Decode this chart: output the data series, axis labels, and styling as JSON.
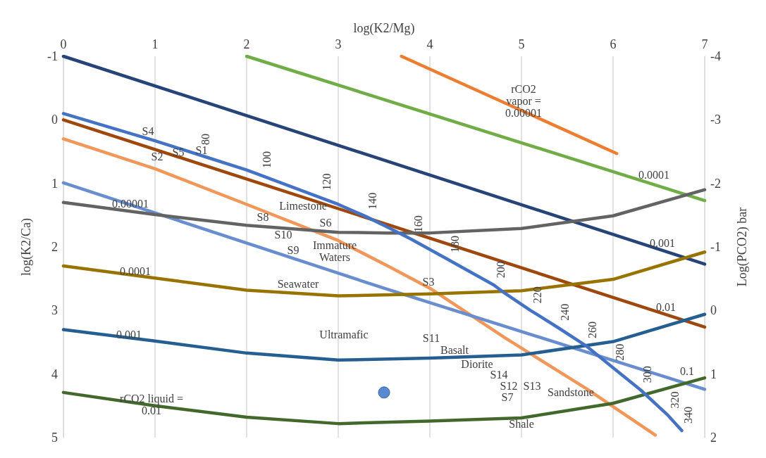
{
  "chart_data": {
    "type": "line",
    "xlabel": "log(K2/Mg)",
    "ylabel": "log(K2/Ca)",
    "y2label": "Log(PCO2) bar",
    "xlim": [
      0,
      7
    ],
    "xticks": [
      0,
      1,
      2,
      3,
      4,
      5,
      6,
      7
    ],
    "ylim": [
      5,
      -1
    ],
    "yticks": [
      -1,
      0,
      1,
      2,
      3,
      4,
      5
    ],
    "y2lim": [
      2,
      -4
    ],
    "y2ticks": [
      -4,
      -3,
      -2,
      -1,
      0,
      1,
      2
    ],
    "grid": "x",
    "marker": "none",
    "line_style": "solid",
    "series": [
      {
        "color": "#264478",
        "x": [
          0,
          7
        ],
        "values": [
          -1,
          2.27
        ]
      },
      {
        "color": "#70ad47",
        "x": [
          2,
          7
        ],
        "values": [
          -1,
          1.27
        ]
      },
      {
        "color": "#ed7d31",
        "x": [
          3.69,
          6.04
        ],
        "values": [
          -1,
          0.53
        ]
      },
      {
        "color": "#9e480e",
        "x": [
          0,
          7
        ],
        "values": [
          0,
          3.26
        ]
      },
      {
        "color": "#f1975a",
        "x": [
          0,
          1,
          2,
          3,
          3.54,
          4,
          4.82,
          5.72,
          6.46
        ],
        "values": [
          0.3,
          0.77,
          1.33,
          1.9,
          2.3,
          2.65,
          3.43,
          4.24,
          4.96
        ]
      },
      {
        "color": "#698ed0",
        "x": [
          0,
          3.5,
          7
        ],
        "values": [
          0.99,
          2.65,
          4.24
        ]
      },
      {
        "color": "#636363",
        "x": [
          0,
          1,
          2,
          3,
          3.54,
          4,
          5,
          6,
          7
        ],
        "values": [
          1.3,
          1.49,
          1.66,
          1.77,
          1.78,
          1.78,
          1.71,
          1.51,
          1.1
        ]
      },
      {
        "color": "#997300",
        "x": [
          0,
          1,
          2,
          3,
          4,
          5,
          6,
          7
        ],
        "values": [
          2.3,
          2.49,
          2.68,
          2.77,
          2.74,
          2.69,
          2.51,
          2.08
        ]
      },
      {
        "color": "#255e91",
        "x": [
          0,
          1,
          2,
          3,
          4,
          5,
          6,
          7
        ],
        "values": [
          3.3,
          3.48,
          3.67,
          3.78,
          3.75,
          3.7,
          3.49,
          3.06
        ]
      },
      {
        "color": "#43682b",
        "x": [
          0,
          1,
          2,
          3,
          4,
          5,
          6,
          7
        ],
        "values": [
          4.29,
          4.5,
          4.68,
          4.78,
          4.74,
          4.69,
          4.46,
          4.06
        ]
      },
      {
        "color": "#4472c4",
        "x": [
          0,
          1,
          1.48,
          2,
          2.15,
          2.8,
          3,
          3.3,
          3.54,
          3.8,
          4.2,
          4.7,
          4.82,
          5.1,
          5.4,
          5.7,
          6,
          6.3,
          6.6,
          6.75
        ],
        "values": [
          -0.1,
          0.33,
          0.55,
          0.79,
          0.87,
          1.22,
          1.33,
          1.52,
          1.69,
          1.88,
          2.2,
          2.6,
          2.73,
          3,
          3.27,
          3.55,
          3.9,
          4.25,
          4.65,
          4.89
        ]
      },
      {
        "type": "scatter",
        "marker": "circle",
        "color": "#2e6bc6",
        "x": [
          3.5
        ],
        "values": [
          4.29
        ]
      }
    ],
    "annotations": [
      "S4",
      "S2",
      "S5",
      "S1",
      "Limestone",
      "S8",
      "S10",
      "S6",
      "S9",
      "Immature\nWaters",
      "Seawater",
      "0.00001",
      "0.0001",
      "0.001",
      "rCO2 liquid =\n0.01",
      "Ultramafic",
      "S3",
      "S11",
      "Basalt",
      "Diorite",
      "S14",
      "S12",
      "S13",
      "S7",
      "Sandstone",
      "Shale",
      "0.001",
      "0.01",
      "0.1",
      "rCO2\nvapor =\n0.00001",
      "0.0001",
      {
        "text": "80",
        "x": 1.48,
        "y": 0.55
      },
      {
        "text": "100",
        "x": 2.15,
        "y": 0.87
      },
      {
        "text": "120",
        "x": 2.8,
        "y": 1.22
      },
      {
        "text": "140",
        "x": 3.3,
        "y": 1.52
      },
      {
        "text": "160",
        "x": 3.8,
        "y": 1.88
      },
      {
        "text": "180",
        "x": 4.2,
        "y": 2.2
      },
      {
        "text": "200",
        "x": 4.7,
        "y": 2.6
      },
      {
        "text": "220",
        "x": 5.1,
        "y": 3
      },
      {
        "text": "240",
        "x": 5.4,
        "y": 3.27
      },
      {
        "text": "260",
        "x": 5.7,
        "y": 3.55
      },
      {
        "text": "280",
        "x": 6,
        "y": 3.9
      },
      {
        "text": "300",
        "x": 6.3,
        "y": 4.25
      },
      {
        "text": "320",
        "x": 6.6,
        "y": 4.65
      },
      {
        "text": "340",
        "x": 6.75,
        "y": 4.89
      }
    ]
  }
}
